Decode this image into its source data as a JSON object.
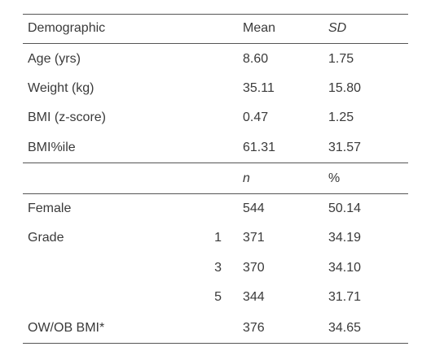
{
  "header": {
    "col_label": "Demographic",
    "col_a": "Mean",
    "col_b": "SD"
  },
  "continuous_rows": [
    {
      "label": "Age (yrs)",
      "a": "8.60",
      "b": "1.75"
    },
    {
      "label": "Weight (kg)",
      "a": "35.11",
      "b": "15.80"
    },
    {
      "label": "BMI (z-score)",
      "a": "0.47",
      "b": "1.25"
    },
    {
      "label": "BMI%ile",
      "a": "61.31",
      "b": "31.57"
    }
  ],
  "subheader": {
    "col_a": "n",
    "col_b": "%"
  },
  "categorical_rows": [
    {
      "label": "Female",
      "sub": "",
      "a": "544",
      "b": "50.14"
    },
    {
      "label": "Grade",
      "sub": "1",
      "a": "371",
      "b": "34.19"
    },
    {
      "label": "",
      "sub": "3",
      "a": "370",
      "b": "34.10"
    },
    {
      "label": "",
      "sub": "5",
      "a": "344",
      "b": "31.71"
    },
    {
      "label": "OW/OB BMI*",
      "sub": "",
      "a": "376",
      "b": "34.65"
    }
  ]
}
